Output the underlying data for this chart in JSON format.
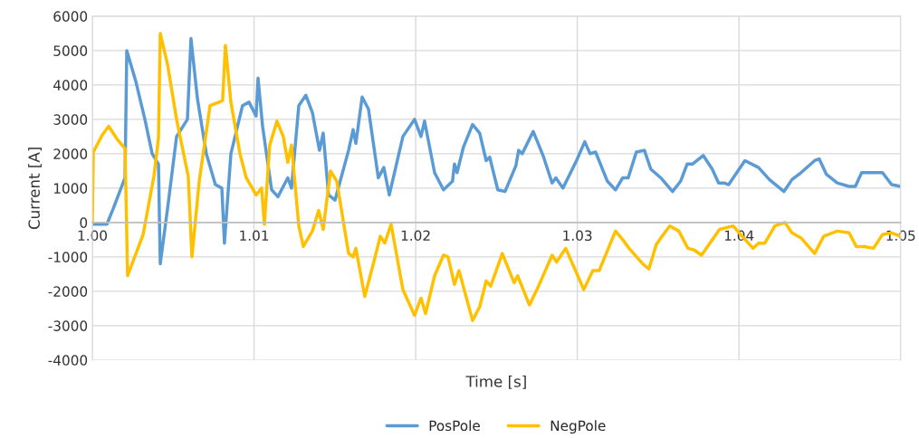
{
  "chart_data": {
    "type": "line",
    "xlabel": "Time [s]",
    "ylabel": "Current [A]",
    "xlim": [
      1.0,
      1.05
    ],
    "xticks": [
      {
        "value": 1.0,
        "label": "1.00"
      },
      {
        "value": 1.01,
        "label": "1.01"
      },
      {
        "value": 1.02,
        "label": "1.02"
      },
      {
        "value": 1.03,
        "label": "1.03"
      },
      {
        "value": 1.04,
        "label": "1.04"
      },
      {
        "value": 1.05,
        "label": "1.05"
      }
    ],
    "ylim": [
      -4000,
      6000
    ],
    "yticks": [
      -4000,
      -3000,
      -2000,
      -1000,
      0,
      1000,
      2000,
      3000,
      4000,
      5000,
      6000
    ],
    "grid": true,
    "legend": "bottom",
    "marker": "none",
    "line_style": "solid",
    "series": [
      {
        "name": "PosPole",
        "color": "#5b9bd5",
        "x": [
          1.0,
          1.0009,
          1.00129,
          1.00202,
          1.00213,
          1.00269,
          1.00325,
          1.0037,
          1.00409,
          1.0042,
          1.00465,
          1.00521,
          1.00588,
          1.0061,
          1.0065,
          1.00705,
          1.00761,
          1.00801,
          1.00817,
          1.00857,
          1.00929,
          1.00969,
          1.01013,
          1.01025,
          1.01053,
          1.01109,
          1.01148,
          1.01209,
          1.01232,
          1.01277,
          1.01321,
          1.01361,
          1.01405,
          1.01428,
          1.01461,
          1.01501,
          1.01585,
          1.01613,
          1.0163,
          1.01669,
          1.01708,
          1.01769,
          1.01803,
          1.01837,
          1.01921,
          1.01993,
          1.02033,
          1.02055,
          1.02117,
          1.02172,
          1.02228,
          1.0224,
          1.02256,
          1.02296,
          1.02352,
          1.02396,
          1.02436,
          1.02458,
          1.02508,
          1.02553,
          1.0262,
          1.02637,
          1.02659,
          1.02727,
          1.02788,
          1.02844,
          1.02867,
          1.02911,
          1.02995,
          1.03046,
          1.03079,
          1.03113,
          1.03186,
          1.03236,
          1.03281,
          1.03315,
          1.03365,
          1.03415,
          1.03455,
          1.03516,
          1.03589,
          1.03639,
          1.03679,
          1.03712,
          1.03779,
          1.03835,
          1.03874,
          1.03908,
          1.03936,
          1.04037,
          1.04121,
          1.04188,
          1.04278,
          1.04328,
          1.04384,
          1.04468,
          1.04496,
          1.04541,
          1.04608,
          1.04681,
          1.0472,
          1.04759,
          1.04821,
          1.04888,
          1.04944,
          1.05
        ],
        "values": [
          -50,
          -50,
          400,
          1300,
          5000,
          4100,
          3000,
          2000,
          1700,
          -1200,
          400,
          2500,
          3000,
          5350,
          3600,
          2000,
          1100,
          1000,
          -600,
          2000,
          3400,
          3500,
          3100,
          4200,
          2800,
          950,
          750,
          1300,
          1000,
          3400,
          3700,
          3200,
          2100,
          2600,
          800,
          650,
          2100,
          2700,
          2300,
          3650,
          3300,
          1300,
          1600,
          800,
          2500,
          3000,
          2500,
          2950,
          1450,
          950,
          1200,
          1700,
          1450,
          2200,
          2850,
          2600,
          1800,
          1900,
          950,
          900,
          1650,
          2100,
          2000,
          2650,
          1950,
          1150,
          1300,
          1000,
          1800,
          2350,
          2000,
          2050,
          1200,
          950,
          1300,
          1300,
          2050,
          2100,
          1550,
          1300,
          900,
          1200,
          1700,
          1700,
          1950,
          1550,
          1150,
          1150,
          1100,
          1800,
          1600,
          1250,
          900,
          1250,
          1450,
          1800,
          1850,
          1400,
          1150,
          1050,
          1050,
          1450,
          1450,
          1450,
          1100,
          1050
        ]
      },
      {
        "name": "NegPole",
        "color": "#ffc000",
        "x": [
          1.0,
          1.00006,
          1.00062,
          1.00101,
          1.00157,
          1.00202,
          1.00218,
          1.00314,
          1.00381,
          1.00409,
          1.0042,
          1.00465,
          1.00521,
          1.00593,
          1.00616,
          1.00661,
          1.00728,
          1.00784,
          1.00806,
          1.00823,
          1.00857,
          1.00913,
          1.00952,
          1.01013,
          1.01047,
          1.01064,
          1.01097,
          1.01142,
          1.01181,
          1.01209,
          1.01232,
          1.01277,
          1.01305,
          1.01361,
          1.014,
          1.01428,
          1.01473,
          1.01512,
          1.01585,
          1.01613,
          1.0163,
          1.01685,
          1.01741,
          1.01781,
          1.01809,
          1.01848,
          1.01921,
          1.01993,
          1.02033,
          1.02061,
          1.02117,
          1.02172,
          1.022,
          1.0224,
          1.02268,
          1.02352,
          1.02396,
          1.02436,
          1.02464,
          1.02536,
          1.02609,
          1.02631,
          1.02704,
          1.0276,
          1.02844,
          1.02872,
          1.02928,
          1.03012,
          1.0304,
          1.03096,
          1.03135,
          1.03236,
          1.03281,
          1.0332,
          1.03404,
          1.03443,
          1.03488,
          1.03516,
          1.03572,
          1.03628,
          1.03684,
          1.03723,
          1.03768,
          1.0388,
          1.03964,
          1.0402,
          1.04087,
          1.04121,
          1.0416,
          1.04222,
          1.04284,
          1.04328,
          1.04384,
          1.04468,
          1.04524,
          1.04608,
          1.04681,
          1.04726,
          1.04776,
          1.04832,
          1.04888,
          1.04944,
          1.05
        ],
        "values": [
          0,
          2050,
          2550,
          2800,
          2400,
          2150,
          -1550,
          -350,
          1350,
          2450,
          5500,
          4600,
          3000,
          1350,
          -1000,
          1200,
          3400,
          3500,
          3550,
          5150,
          3500,
          2000,
          1300,
          800,
          1000,
          -50,
          2250,
          2950,
          2500,
          1750,
          2250,
          -100,
          -700,
          -250,
          350,
          -200,
          1500,
          1200,
          -900,
          -1000,
          -750,
          -2150,
          -1150,
          -400,
          -600,
          -50,
          -1950,
          -2700,
          -2200,
          -2650,
          -1550,
          -950,
          -1000,
          -1800,
          -1400,
          -2850,
          -2450,
          -1700,
          -1850,
          -900,
          -1750,
          -1550,
          -2400,
          -1850,
          -950,
          -1150,
          -750,
          -1650,
          -1950,
          -1400,
          -1400,
          -250,
          -500,
          -750,
          -1200,
          -1350,
          -650,
          -450,
          -100,
          -250,
          -750,
          -800,
          -950,
          -200,
          -100,
          -400,
          -750,
          -600,
          -600,
          -100,
          0,
          -300,
          -450,
          -900,
          -400,
          -250,
          -300,
          -700,
          -700,
          -750,
          -350,
          -300,
          -400
        ]
      }
    ]
  }
}
